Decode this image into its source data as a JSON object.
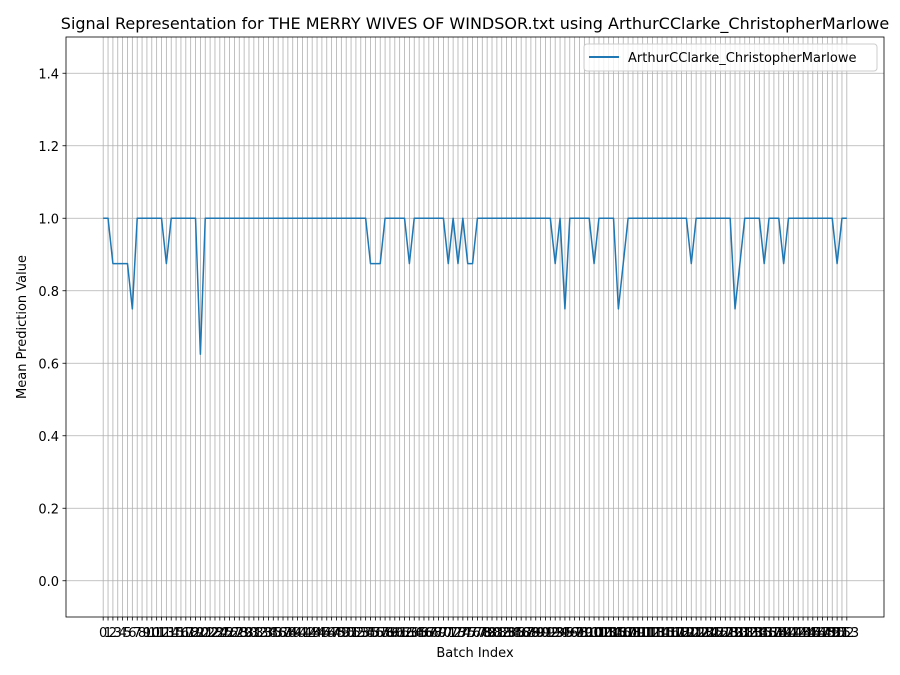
{
  "chart_data": {
    "type": "line",
    "title": "Signal Representation for THE MERRY WIVES OF WINDSOR.txt using ArthurCClarke_ChristopherMarlowe",
    "x_label": "Batch Index",
    "y_label": "Mean Prediction Value",
    "x": [
      0,
      1,
      2,
      3,
      4,
      5,
      6,
      7,
      8,
      9,
      10,
      11,
      12,
      13,
      14,
      15,
      16,
      17,
      18,
      19,
      20,
      21,
      22,
      23,
      24,
      25,
      26,
      27,
      28,
      29,
      30,
      31,
      32,
      33,
      34,
      35,
      36,
      37,
      38,
      39,
      40,
      41,
      42,
      43,
      44,
      45,
      46,
      47,
      48,
      49,
      50,
      51,
      52,
      53,
      54,
      55,
      56,
      57,
      58,
      59,
      60,
      61,
      62,
      63,
      64,
      65,
      66,
      67,
      68,
      69,
      70,
      71,
      72,
      73,
      74,
      75,
      76,
      77,
      78,
      79,
      80,
      81,
      82,
      83,
      84,
      85,
      86,
      87,
      88,
      89,
      90,
      91,
      92,
      93,
      94,
      95,
      96,
      97,
      98,
      99,
      100,
      101,
      102,
      103,
      104,
      105,
      106,
      107,
      108,
      109,
      110,
      111,
      112,
      113,
      114,
      115,
      116,
      117,
      118,
      119,
      120,
      121,
      122,
      123,
      124,
      125,
      126,
      127,
      128,
      129,
      130,
      131,
      132,
      133,
      134,
      135,
      136,
      137,
      138,
      139,
      140,
      141,
      142,
      143,
      144,
      145,
      146,
      147,
      148,
      149,
      150,
      151,
      152,
      153
    ],
    "series": [
      {
        "name": "ArthurCClarke_ChristopherMarlowe",
        "color": "#1f77b4",
        "values": [
          1,
          1,
          0.875,
          0.875,
          0.875,
          0.875,
          0.75,
          1,
          1,
          1,
          1,
          1,
          1,
          0.875,
          1,
          1,
          1,
          1,
          1,
          1,
          0.625,
          1,
          1,
          1,
          1,
          1,
          1,
          1,
          1,
          1,
          1,
          1,
          1,
          1,
          1,
          1,
          1,
          1,
          1,
          1,
          1,
          1,
          1,
          1,
          1,
          1,
          1,
          1,
          1,
          1,
          1,
          1,
          1,
          1,
          1,
          0.875,
          0.875,
          0.875,
          1,
          1,
          1,
          1,
          1,
          0.875,
          1,
          1,
          1,
          1,
          1,
          1,
          1,
          0.875,
          1,
          0.875,
          1,
          0.875,
          0.875,
          1,
          1,
          1,
          1,
          1,
          1,
          1,
          1,
          1,
          1,
          1,
          1,
          1,
          1,
          1,
          1,
          0.875,
          1,
          0.75,
          1,
          1,
          1,
          1,
          1,
          0.875,
          1,
          1,
          1,
          1,
          0.75,
          0.875,
          1,
          1,
          1,
          1,
          1,
          1,
          1,
          1,
          1,
          1,
          1,
          1,
          1,
          0.875,
          1,
          1,
          1,
          1,
          1,
          1,
          1,
          1,
          0.75,
          0.875,
          1,
          1,
          1,
          1,
          0.875,
          1,
          1,
          1,
          0.875,
          1,
          1,
          1,
          1,
          1,
          1,
          1,
          1,
          1,
          1,
          0.875,
          1,
          1
        ]
      }
    ],
    "xlim": [
      -7.65,
      160.65
    ],
    "xticks": [
      0,
      1,
      2,
      3,
      4,
      5,
      6,
      7,
      8,
      9,
      10,
      11,
      12,
      13,
      14,
      15,
      16,
      17,
      18,
      19,
      20,
      21,
      22,
      23,
      24,
      25,
      26,
      27,
      28,
      29,
      30,
      31,
      32,
      33,
      34,
      35,
      36,
      37,
      38,
      39,
      40,
      41,
      42,
      43,
      44,
      45,
      46,
      47,
      48,
      49,
      50,
      51,
      52,
      53,
      54,
      55,
      56,
      57,
      58,
      59,
      60,
      61,
      62,
      63,
      64,
      65,
      66,
      67,
      68,
      69,
      70,
      71,
      72,
      73,
      74,
      75,
      76,
      77,
      78,
      79,
      80,
      81,
      82,
      83,
      84,
      85,
      86,
      87,
      88,
      89,
      90,
      91,
      92,
      93,
      94,
      95,
      96,
      97,
      98,
      99,
      100,
      101,
      102,
      103,
      104,
      105,
      106,
      107,
      108,
      109,
      110,
      111,
      112,
      113,
      114,
      115,
      116,
      117,
      118,
      119,
      120,
      121,
      122,
      123,
      124,
      125,
      126,
      127,
      128,
      129,
      130,
      131,
      132,
      133,
      134,
      135,
      136,
      137,
      138,
      139,
      140,
      141,
      142,
      143,
      144,
      145,
      146,
      147,
      148,
      149,
      150,
      151,
      152,
      153
    ],
    "ylim": [
      -0.1,
      1.5
    ],
    "yticks": [
      {
        "value": 0,
        "label": "0.0"
      },
      {
        "value": 0.2,
        "label": "0.2"
      },
      {
        "value": 0.4,
        "label": "0.4"
      },
      {
        "value": 0.6,
        "label": "0.6"
      },
      {
        "value": 0.8,
        "label": "0.8"
      },
      {
        "value": 1,
        "label": "1.0"
      },
      {
        "value": 1.2,
        "label": "1.2"
      },
      {
        "value": 1.4,
        "label": "1.4"
      }
    ],
    "grid": true,
    "legend": "upper right"
  }
}
